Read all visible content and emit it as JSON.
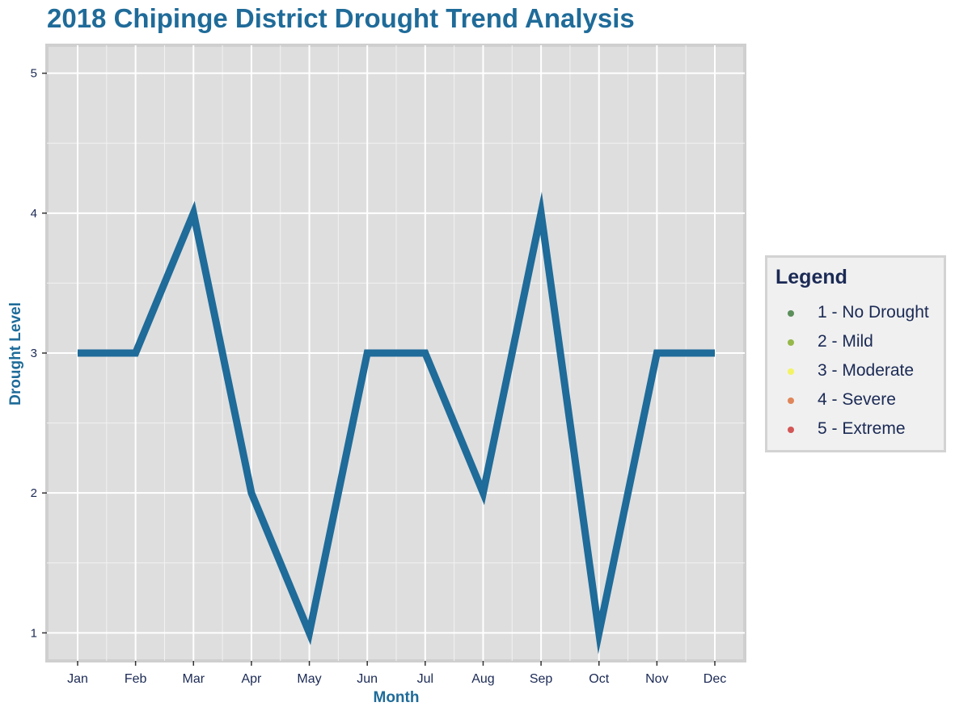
{
  "chart_data": {
    "type": "line",
    "title": "2018 Chipinge District Drought Trend Analysis",
    "xlabel": "Month",
    "ylabel": "Drought Level",
    "categories": [
      "Jan",
      "Feb",
      "Mar",
      "Apr",
      "May",
      "Jun",
      "Jul",
      "Aug",
      "Sep",
      "Oct",
      "Nov",
      "Dec"
    ],
    "series": [
      {
        "values": [
          3,
          3,
          4,
          2,
          1,
          3,
          3,
          2,
          4,
          1,
          3,
          3
        ],
        "color": "#1f6b99"
      }
    ],
    "ylim": [
      0.8,
      5.2
    ],
    "yticks": [
      1,
      2,
      3,
      4,
      5
    ],
    "grid": true,
    "legend_position": "right",
    "legend": {
      "title": "Legend",
      "items": [
        {
          "label": "1 - No Drought",
          "color": "#5c8f5c"
        },
        {
          "label": "2 - Mild",
          "color": "#96b84a"
        },
        {
          "label": "3 - Moderate",
          "color": "#f3f365"
        },
        {
          "label": "4 - Severe",
          "color": "#e0865a"
        },
        {
          "label": "5 - Extreme",
          "color": "#d35656"
        }
      ]
    }
  }
}
